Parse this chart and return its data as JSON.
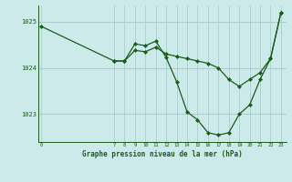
{
  "title": "Graphe pression niveau de la mer (hPa)",
  "background_color": "#cceaea",
  "line_color": "#1a5c1a",
  "marker_color": "#1a5c1a",
  "grid_color_v": "#aacfcf",
  "grid_color_h": "#b0c8c8",
  "x_ticks": [
    0,
    7,
    8,
    9,
    10,
    11,
    12,
    13,
    14,
    15,
    16,
    17,
    18,
    19,
    20,
    21,
    22,
    23
  ],
  "ylim": [
    1022.4,
    1025.35
  ],
  "yticks": [
    1023,
    1024,
    1025
  ],
  "xlim": [
    -0.3,
    23.5
  ],
  "series1_x": [
    0,
    7,
    8,
    9,
    10,
    11,
    12,
    13,
    14,
    15,
    16,
    17,
    18,
    19,
    20,
    21,
    22,
    23
  ],
  "series1_y": [
    1024.9,
    1024.15,
    1024.15,
    1024.38,
    1024.35,
    1024.45,
    1024.3,
    1024.25,
    1024.2,
    1024.15,
    1024.1,
    1024.0,
    1023.75,
    1023.6,
    1023.75,
    1023.9,
    1024.2,
    1025.2
  ],
  "series2_x": [
    7,
    8,
    9,
    10,
    11,
    12,
    13,
    14,
    15,
    16,
    17,
    18,
    19,
    20,
    21,
    22,
    23
  ],
  "series2_y": [
    1024.15,
    1024.15,
    1024.52,
    1024.48,
    1024.58,
    1024.22,
    1023.7,
    1023.05,
    1022.88,
    1022.6,
    1022.55,
    1022.6,
    1023.0,
    1023.2,
    1023.75,
    1024.2,
    1025.2
  ]
}
